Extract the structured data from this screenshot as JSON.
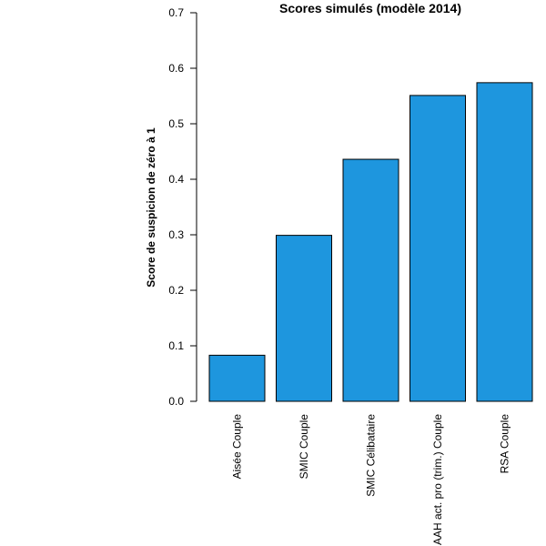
{
  "chart_data": {
    "type": "bar",
    "title": "Scores simulés (modèle 2014)",
    "xlabel": "",
    "ylabel": "Score de suspicion de zéro à 1",
    "categories": [
      "Aisée Couple",
      "SMIC Couple",
      "SMIC Célibataire",
      "AAH act. pro (trim.) Couple",
      "RSA Couple"
    ],
    "values": [
      0.083,
      0.299,
      0.436,
      0.551,
      0.574
    ],
    "ylim": [
      0,
      0.7
    ],
    "yticks": [
      "0.0",
      "0.1",
      "0.2",
      "0.3",
      "0.4",
      "0.5",
      "0.6",
      "0.7"
    ],
    "grid": false,
    "bar_color": "#1E96DE",
    "bar_edge_color": "#000000"
  }
}
